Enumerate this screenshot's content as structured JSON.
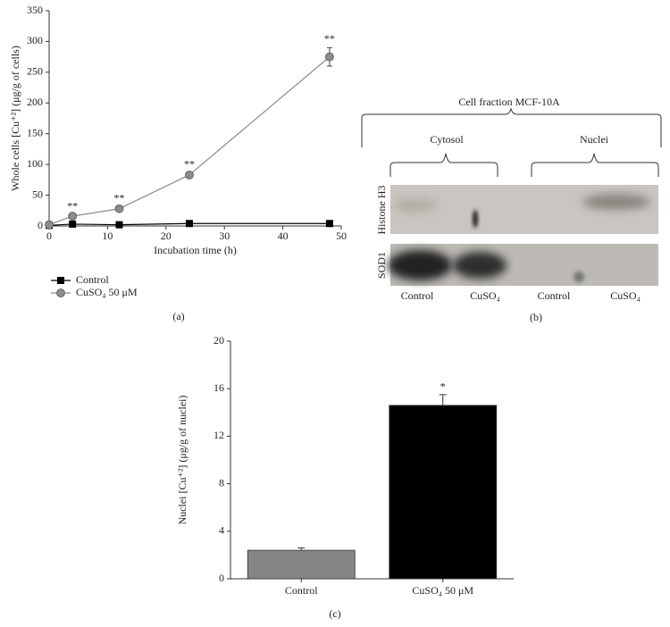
{
  "chart_data": [
    {
      "type": "line",
      "xlabel": "Incubation time (h)",
      "ylabel": "Whole cells [Cu⁺²] (μg/g of cells)",
      "x": [
        0,
        4,
        12,
        24,
        48
      ],
      "series": [
        {
          "name": "Control",
          "color": "#000000",
          "marker": "square",
          "values": [
            1,
            3,
            2,
            4,
            4
          ],
          "errors": [
            0,
            1,
            1,
            1,
            1
          ]
        },
        {
          "name": "CuSO₄ 50 μM",
          "color": "#8c8c8c",
          "marker": "circle",
          "values": [
            2,
            16,
            28,
            83,
            275
          ],
          "errors": [
            0,
            2,
            3,
            3,
            15
          ],
          "significance": [
            null,
            "**",
            "**",
            "**",
            "**"
          ]
        }
      ],
      "xlim": [
        0,
        50
      ],
      "xticks": [
        0,
        10,
        20,
        30,
        40,
        50
      ],
      "ylim": [
        0,
        350
      ],
      "yticks": [
        0,
        50,
        100,
        150,
        200,
        250,
        300,
        350
      ],
      "panel": "(a)"
    },
    {
      "type": "bar",
      "xlabel": null,
      "ylabel": "Nuclei [Cu⁺²] (μg/g of nuclei)",
      "categories": [
        "Control",
        "CuSO₄ 50 μM"
      ],
      "values": [
        2.4,
        14.6
      ],
      "errors": [
        0.2,
        0.9
      ],
      "colors": [
        "#858585",
        "#000000"
      ],
      "significance": [
        null,
        "*"
      ],
      "ylim": [
        0,
        20
      ],
      "yticks": [
        0,
        4,
        8,
        12,
        16,
        20
      ],
      "panel": "(c)"
    }
  ],
  "blot": {
    "title": "Cell fraction MCF-10A",
    "groups": [
      "Cytosol",
      "Nuclei"
    ],
    "rows": [
      "Histone H3",
      "SOD1"
    ],
    "lanes": [
      "Control",
      "CuSO₄",
      "Control",
      "CuSO₄"
    ],
    "panel": "(b)"
  }
}
